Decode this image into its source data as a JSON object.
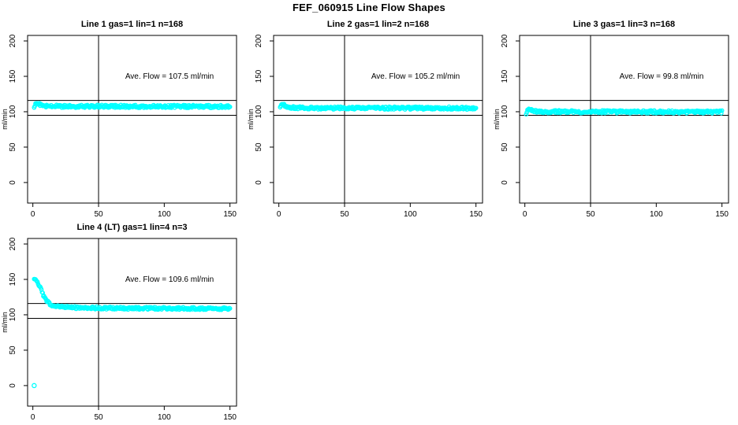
{
  "page_title": "FEF_060915  Line Flow Shapes",
  "colors": {
    "background": "#FFFFFF",
    "axis": "#000000",
    "points": "#00FFFF"
  },
  "chart_data": [
    {
      "type": "scatter",
      "title": "Line 1 gas=1 lin=1 n=168",
      "annotation": "Ave. Flow =  107.5  ml/min",
      "annotation_pos": {
        "x": 104,
        "y": 150
      },
      "ave_flow_ml_min": 107.5,
      "n_points": 168,
      "ylabel": "ml/min",
      "xticks": [
        0,
        50,
        100,
        150
      ],
      "yticks": [
        0,
        50,
        100,
        150,
        200
      ],
      "xlim": [
        -4,
        155
      ],
      "ylim": [
        -29,
        207.8
      ],
      "vline_x": 50,
      "hlines": [
        116,
        95
      ],
      "x_range": [
        1,
        150
      ],
      "keypoints": [
        [
          1,
          105.5
        ],
        [
          2,
          111.5
        ],
        [
          3,
          112
        ],
        [
          4,
          111.5
        ],
        [
          6,
          110
        ],
        [
          9,
          108.5
        ],
        [
          14,
          107.8
        ],
        [
          25,
          107.6
        ],
        [
          60,
          107.6
        ],
        [
          150,
          107.4
        ]
      ],
      "band_halfwidth": 2.0,
      "outliers": []
    },
    {
      "type": "scatter",
      "title": "Line 2 gas=1 lin=2 n=168",
      "annotation": "Ave. Flow =  105.2  ml/min",
      "annotation_pos": {
        "x": 104,
        "y": 150
      },
      "ave_flow_ml_min": 105.2,
      "n_points": 168,
      "ylabel": "ml/min",
      "xticks": [
        0,
        50,
        100,
        150
      ],
      "yticks": [
        0,
        50,
        100,
        150,
        200
      ],
      "xlim": [
        -4,
        155
      ],
      "ylim": [
        -29,
        207.8
      ],
      "vline_x": 50,
      "hlines": [
        116,
        95
      ],
      "x_range": [
        1,
        150
      ],
      "keypoints": [
        [
          1,
          107
        ],
        [
          2,
          110.5
        ],
        [
          3,
          110
        ],
        [
          5,
          108
        ],
        [
          8,
          106.5
        ],
        [
          12,
          105.7
        ],
        [
          20,
          105.3
        ],
        [
          60,
          105.2
        ],
        [
          150,
          105
        ]
      ],
      "band_halfwidth": 2.0,
      "outliers": []
    },
    {
      "type": "scatter",
      "title": "Line 3 gas=1 lin=3 n=168",
      "annotation": "Ave. Flow =  99.8  ml/min",
      "annotation_pos": {
        "x": 104,
        "y": 150
      },
      "ave_flow_ml_min": 99.8,
      "n_points": 168,
      "ylabel": "ml/min",
      "xticks": [
        0,
        50,
        100,
        150
      ],
      "yticks": [
        0,
        50,
        100,
        150,
        200
      ],
      "xlim": [
        -4,
        155
      ],
      "ylim": [
        -29,
        207.8
      ],
      "vline_x": 50,
      "hlines": [
        116,
        95
      ],
      "x_range": [
        1,
        150
      ],
      "keypoints": [
        [
          1,
          96.5
        ],
        [
          2,
          103
        ],
        [
          3,
          103.5
        ],
        [
          5,
          102
        ],
        [
          8,
          100.8
        ],
        [
          14,
          100.2
        ],
        [
          30,
          100
        ],
        [
          150,
          99.7
        ]
      ],
      "band_halfwidth": 2.0,
      "outliers": []
    },
    {
      "type": "scatter",
      "title": "Line 4 (LT) gas=1 lin=4 n=3",
      "annotation": "Ave. Flow =  109.6  ml/min",
      "annotation_pos": {
        "x": 104,
        "y": 150
      },
      "ave_flow_ml_min": 109.6,
      "n_points": 3,
      "ylabel": "ml/min",
      "xticks": [
        0,
        50,
        100,
        150
      ],
      "yticks": [
        0,
        50,
        100,
        150,
        200
      ],
      "xlim": [
        -4,
        155
      ],
      "ylim": [
        -29,
        207.8
      ],
      "vline_x": 50,
      "hlines": [
        116,
        95
      ],
      "x_range": [
        1,
        150
      ],
      "keypoints": [
        [
          1,
          150
        ],
        [
          2,
          150
        ],
        [
          3,
          148
        ],
        [
          4,
          145
        ],
        [
          5,
          141
        ],
        [
          6,
          136.5
        ],
        [
          7,
          132
        ],
        [
          8,
          128
        ],
        [
          9,
          124.5
        ],
        [
          10,
          121.5
        ],
        [
          11,
          119
        ],
        [
          12,
          117
        ],
        [
          13,
          115.5
        ],
        [
          14,
          114.3
        ],
        [
          15,
          113.3
        ],
        [
          17,
          112.3
        ],
        [
          19,
          111.6
        ],
        [
          22,
          111
        ],
        [
          26,
          110.6
        ],
        [
          32,
          110.2
        ],
        [
          40,
          109.9
        ],
        [
          55,
          109.5
        ],
        [
          75,
          109.2
        ],
        [
          110,
          108.9
        ],
        [
          150,
          108.6
        ]
      ],
      "band_halfwidth": 1.8,
      "outliers": [
        [
          1,
          0
        ]
      ]
    }
  ]
}
